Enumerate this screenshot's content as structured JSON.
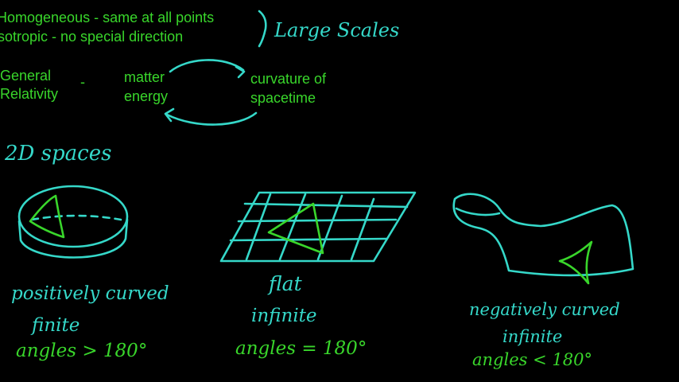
{
  "colors": {
    "background": "#000000",
    "green": "#39d62b",
    "cyan": "#35d8c9"
  },
  "principles": {
    "homogeneous": "Homogeneous - same at all points",
    "isotropic": "Isotropic - no special direction",
    "scale_note": "Large Scales"
  },
  "gr": {
    "label_line1": "General",
    "label_line2": "Relativity",
    "dash": "-",
    "matter_line1": "matter",
    "matter_line2": "energy",
    "curvature_line1": "curvature of",
    "curvature_line2": "spacetime"
  },
  "heading": "2D spaces",
  "spaces": [
    {
      "kind": "positively curved",
      "extent": "finite",
      "angles": "angles > 180°"
    },
    {
      "kind": "flat",
      "extent": "infinite",
      "angles": "angles = 180°"
    },
    {
      "kind": "negatively curved",
      "extent": "infinite",
      "angles": "angles < 180°"
    }
  ]
}
